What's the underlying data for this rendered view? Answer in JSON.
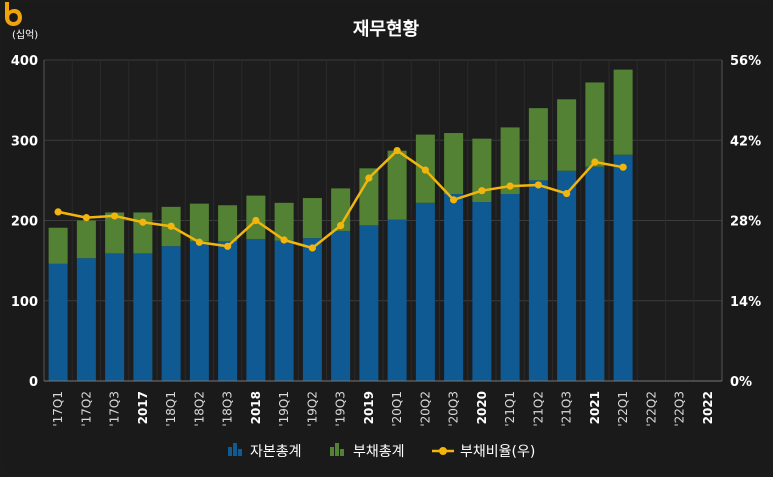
{
  "chart_data": {
    "type": "bar",
    "title": "재무현황",
    "unit_left": "(십억)",
    "categories": [
      "'17Q1",
      "'17Q2",
      "'17Q3",
      "2017",
      "'18Q1",
      "'18Q2",
      "'18Q3",
      "2018",
      "'19Q1",
      "'19Q2",
      "'19Q3",
      "2019",
      "'20Q1",
      "'20Q2",
      "'20Q3",
      "2020",
      "'21Q1",
      "'21Q2",
      "'21Q3",
      "2021",
      "'22Q1",
      "'22Q2",
      "'22Q3",
      "2022"
    ],
    "bold_categories": [
      "2017",
      "2018",
      "2019",
      "2020",
      "2021",
      "2022"
    ],
    "series": [
      {
        "name": "자본총계",
        "type": "bar",
        "stack": "a",
        "color": "#0f5a92",
        "values": [
          146,
          153,
          159,
          159,
          168,
          174,
          174,
          177,
          175,
          178,
          187,
          194,
          201,
          222,
          233,
          223,
          233,
          250,
          262,
          267,
          282,
          null,
          null,
          null
        ]
      },
      {
        "name": "부채총계",
        "type": "bar",
        "stack": "a",
        "color": "#548235",
        "values": [
          45,
          47,
          51,
          51,
          49,
          47,
          45,
          54,
          47,
          50,
          53,
          71,
          86,
          85,
          76,
          79,
          83,
          90,
          89,
          105,
          106,
          null,
          null,
          null
        ]
      },
      {
        "name": "부채비율(우)",
        "type": "line",
        "axis": "right",
        "color": "#f2b50b",
        "values": [
          29.5,
          28.5,
          28.8,
          27.7,
          27.0,
          24.2,
          23.5,
          28.0,
          24.6,
          23.2,
          27.1,
          35.4,
          40.2,
          36.8,
          31.6,
          33.2,
          34.0,
          34.2,
          32.7,
          38.2,
          37.3,
          null,
          null,
          null
        ]
      }
    ],
    "ylim": [
      0,
      400
    ],
    "y_ticks": [
      "0",
      "100",
      "200",
      "300",
      "400"
    ],
    "y2lim": [
      0,
      56
    ],
    "y2_ticks": [
      "0%",
      "14%",
      "28%",
      "42%",
      "56%"
    ],
    "legend_position": "bottom-center",
    "grid": true
  },
  "legend": {
    "equity": "자본총계",
    "liabilities": "부채총계",
    "ratio": "부채비율(우)"
  },
  "colors": {
    "equity": "#0f5a92",
    "liabilities": "#548235",
    "ratio": "#f2b50b",
    "brand": "#f0a30a"
  },
  "brand_icon": "b-logo-icon"
}
